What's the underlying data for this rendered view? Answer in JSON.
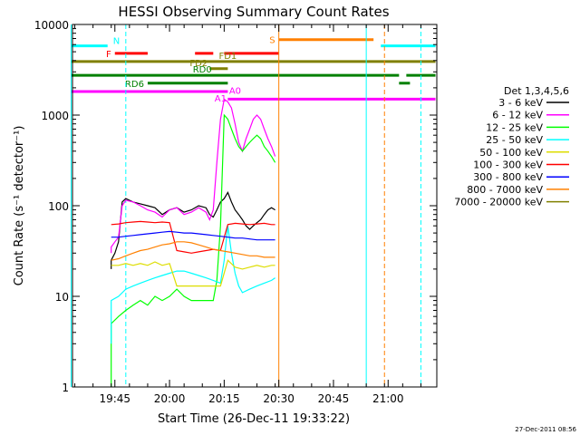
{
  "chart_data": {
    "type": "line",
    "title": "HESSI Observing Summary Count Rates",
    "xlabel": "Start Time (26-Dec-11 19:33:22)",
    "ylabel": "Count Rate (s⁻¹ detector⁻¹)",
    "y_scale": "log",
    "ylim": [
      1,
      10000
    ],
    "xlim": [
      "19:33:22",
      "21:13:22"
    ],
    "x_ticks": [
      "19:45",
      "20:00",
      "20:15",
      "20:30",
      "20:45",
      "21:00"
    ],
    "y_ticks": [
      "1",
      "10",
      "100",
      "1000",
      "10000"
    ],
    "grid": false,
    "legend_title": "Det 1,3,4,5,6",
    "legend_position": "right",
    "series": [
      {
        "name": "3 - 6 keV",
        "color": "#000000",
        "x": [
          "19:44",
          "19:44",
          "19:45",
          "19:46",
          "19:47",
          "19:48",
          "19:50",
          "19:52",
          "19:54",
          "19:56",
          "19:58",
          "20:00",
          "20:02",
          "20:04",
          "20:06",
          "20:08",
          "20:10",
          "20:11",
          "20:12",
          "20:13",
          "20:14",
          "20:15",
          "20:16",
          "20:17",
          "20:18",
          "20:19",
          "20:20",
          "20:21",
          "20:22",
          "20:23",
          "20:24",
          "20:25",
          "20:26",
          "20:27",
          "20:28",
          "20:29"
        ],
        "y": [
          20,
          25,
          30,
          40,
          110,
          120,
          110,
          105,
          100,
          95,
          80,
          90,
          95,
          85,
          90,
          100,
          95,
          80,
          75,
          90,
          110,
          120,
          140,
          110,
          90,
          80,
          70,
          60,
          55,
          60,
          65,
          70,
          80,
          90,
          95,
          90
        ]
      },
      {
        "name": "6 - 12 keV",
        "color": "#ff00ff",
        "x": [
          "19:44",
          "19:44",
          "19:45",
          "19:46",
          "19:47",
          "19:48",
          "19:50",
          "19:52",
          "19:54",
          "19:56",
          "19:58",
          "20:00",
          "20:02",
          "20:04",
          "20:06",
          "20:08",
          "20:10",
          "20:11",
          "20:12",
          "20:13",
          "20:14",
          "20:15",
          "20:16",
          "20:17",
          "20:18",
          "20:19",
          "20:20",
          "20:21",
          "20:22",
          "20:23",
          "20:24",
          "20:25",
          "20:26",
          "20:27",
          "20:28",
          "20:29"
        ],
        "y": [
          30,
          35,
          40,
          45,
          100,
          115,
          110,
          100,
          90,
          85,
          75,
          90,
          95,
          80,
          85,
          95,
          85,
          70,
          90,
          300,
          900,
          1500,
          1400,
          1200,
          800,
          500,
          400,
          550,
          700,
          900,
          1000,
          900,
          700,
          550,
          450,
          350
        ]
      },
      {
        "name": "12 - 25 keV",
        "color": "#00ff00",
        "x": [
          "19:44",
          "19:44",
          "19:46",
          "19:48",
          "19:50",
          "19:52",
          "19:54",
          "19:56",
          "19:58",
          "20:00",
          "20:02",
          "20:04",
          "20:06",
          "20:08",
          "20:10",
          "20:12",
          "20:13",
          "20:14",
          "20:15",
          "20:16",
          "20:17",
          "20:18",
          "20:19",
          "20:20",
          "20:21",
          "20:22",
          "20:23",
          "20:24",
          "20:25",
          "20:26",
          "20:27",
          "20:28",
          "20:29"
        ],
        "y": [
          1,
          5,
          6,
          7,
          8,
          9,
          8,
          10,
          9,
          10,
          12,
          10,
          9,
          9,
          9,
          9,
          15,
          60,
          1000,
          900,
          700,
          550,
          450,
          400,
          450,
          500,
          550,
          600,
          550,
          450,
          400,
          350,
          300
        ]
      },
      {
        "name": "25 - 50 keV",
        "color": "#00ffff",
        "x": [
          "19:44",
          "19:44",
          "19:46",
          "19:48",
          "19:50",
          "19:52",
          "19:54",
          "19:56",
          "19:58",
          "20:00",
          "20:02",
          "20:04",
          "20:06",
          "20:08",
          "20:10",
          "20:12",
          "20:14",
          "20:15",
          "20:16",
          "20:17",
          "20:18",
          "20:19",
          "20:20",
          "20:22",
          "20:24",
          "20:26",
          "20:28",
          "20:29"
        ],
        "y": [
          3,
          9,
          10,
          12,
          13,
          14,
          15,
          16,
          17,
          18,
          19,
          19,
          18,
          17,
          16,
          15,
          14,
          25,
          60,
          30,
          18,
          13,
          11,
          12,
          13,
          14,
          15,
          16
        ]
      },
      {
        "name": "50 - 100 keV",
        "color": "#dddd00",
        "x": [
          "19:44",
          "19:46",
          "19:48",
          "19:50",
          "19:52",
          "19:54",
          "19:56",
          "19:58",
          "20:00",
          "20:02",
          "20:04",
          "20:06",
          "20:08",
          "20:10",
          "20:12",
          "20:14",
          "20:16",
          "20:18",
          "20:20",
          "20:22",
          "20:24",
          "20:26",
          "20:28",
          "20:29"
        ],
        "y": [
          22,
          22,
          23,
          22,
          23,
          22,
          24,
          22,
          23,
          13,
          13,
          13,
          13,
          13,
          13,
          13,
          25,
          21,
          20,
          21,
          22,
          21,
          22,
          22
        ]
      },
      {
        "name": "100 - 300 keV",
        "color": "#ff0000",
        "x": [
          "19:44",
          "19:46",
          "19:48",
          "19:50",
          "19:52",
          "19:54",
          "19:56",
          "19:58",
          "20:00",
          "20:02",
          "20:04",
          "20:06",
          "20:08",
          "20:10",
          "20:12",
          "20:14",
          "20:16",
          "20:18",
          "20:20",
          "20:22",
          "20:24",
          "20:26",
          "20:28",
          "20:29"
        ],
        "y": [
          62,
          63,
          65,
          66,
          67,
          66,
          65,
          66,
          65,
          32,
          31,
          30,
          31,
          32,
          33,
          32,
          62,
          64,
          63,
          62,
          63,
          64,
          62,
          62
        ]
      },
      {
        "name": "300 - 800 keV",
        "color": "#0000ff",
        "x": [
          "19:44",
          "19:46",
          "19:48",
          "19:50",
          "19:52",
          "19:54",
          "19:56",
          "19:58",
          "20:00",
          "20:02",
          "20:04",
          "20:06",
          "20:08",
          "20:10",
          "20:12",
          "20:14",
          "20:16",
          "20:18",
          "20:20",
          "20:22",
          "20:24",
          "20:26",
          "20:28",
          "20:29"
        ],
        "y": [
          45,
          45,
          46,
          47,
          48,
          49,
          50,
          51,
          52,
          51,
          50,
          50,
          49,
          48,
          47,
          46,
          45,
          44,
          44,
          43,
          42,
          42,
          42,
          42
        ]
      },
      {
        "name": "800 - 7000 keV",
        "color": "#ff8000",
        "x": [
          "19:44",
          "19:46",
          "19:48",
          "19:50",
          "19:52",
          "19:54",
          "19:56",
          "19:58",
          "20:00",
          "20:02",
          "20:04",
          "20:06",
          "20:08",
          "20:10",
          "20:12",
          "20:14",
          "20:16",
          "20:18",
          "20:20",
          "20:22",
          "20:24",
          "20:26",
          "20:28",
          "20:29"
        ],
        "y": [
          25,
          26,
          28,
          30,
          32,
          33,
          35,
          37,
          38,
          40,
          40,
          39,
          37,
          35,
          33,
          32,
          31,
          30,
          29,
          28,
          28,
          27,
          27,
          27
        ]
      },
      {
        "name": "7000 - 20000 keV",
        "color": "#808000",
        "x": [],
        "y": []
      }
    ],
    "flag_bars": [
      {
        "label": "N",
        "color": "#00ffff",
        "y": 5800,
        "segments": [
          [
            "19:33",
            "19:43"
          ],
          [
            "20:58",
            "21:13"
          ]
        ]
      },
      {
        "label": "S",
        "color": "#ff8000",
        "y": 6800,
        "segments": [
          [
            "20:30",
            "20:56"
          ]
        ]
      },
      {
        "label": "F",
        "color": "#ff0000",
        "y": 4800,
        "segments": [
          [
            "19:45",
            "19:54"
          ],
          [
            "20:07",
            "20:12"
          ],
          [
            "20:15",
            "20:30"
          ]
        ]
      },
      {
        "label": "FD1",
        "color": "#808000",
        "y": 3900,
        "segments": [
          [
            "19:33",
            "21:13"
          ]
        ]
      },
      {
        "label": "FD2",
        "color": "#808000",
        "y": 3250,
        "segments": [
          [
            "20:11",
            "20:16"
          ]
        ]
      },
      {
        "label": "RD0",
        "color": "#008000",
        "y": 2750,
        "segments": [
          [
            "19:33",
            "21:03"
          ],
          [
            "21:05",
            "21:13"
          ]
        ]
      },
      {
        "label": "RD6",
        "color": "#008000",
        "y": 2250,
        "segments": [
          [
            "19:54",
            "20:16"
          ],
          [
            "21:03",
            "21:06"
          ]
        ]
      },
      {
        "label": "A1",
        "color": "#ff00ff",
        "y": 1820,
        "segments": [
          [
            "19:33",
            "20:16"
          ]
        ]
      },
      {
        "label": "A0",
        "color": "#ff00ff",
        "y": 1500,
        "segments": [
          [
            "20:16",
            "21:13"
          ]
        ]
      }
    ],
    "vertical_lines": [
      {
        "x": "19:33",
        "color": "#00ffff",
        "style": "solid"
      },
      {
        "x": "19:48",
        "color": "#00ffff",
        "style": "dashed"
      },
      {
        "x": "20:30",
        "color": "#ff8000",
        "style": "solid"
      },
      {
        "x": "20:54",
        "color": "#00ffff",
        "style": "solid"
      },
      {
        "x": "20:59",
        "color": "#ff8000",
        "style": "dashed"
      },
      {
        "x": "21:09",
        "color": "#00ffff",
        "style": "dashed"
      }
    ],
    "timestamp": "27-Dec-2011 08:56"
  }
}
